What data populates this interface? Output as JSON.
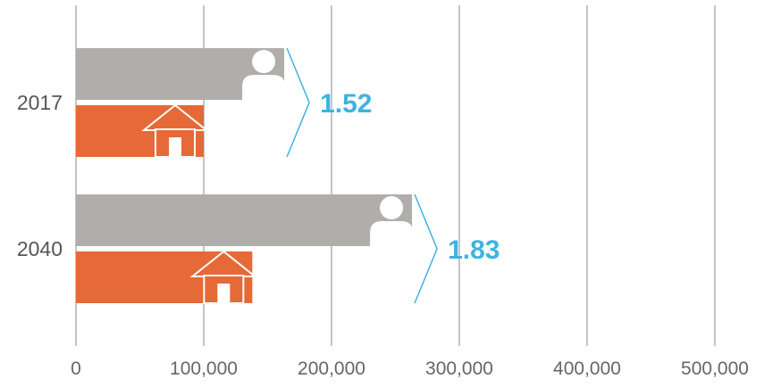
{
  "chart_data": {
    "type": "bar",
    "categories": [
      "2017",
      "2040"
    ],
    "series": [
      {
        "values": [
          163000,
          263000
        ],
        "icon": "person-icon"
      },
      {
        "values": [
          100000,
          138000
        ],
        "icon": "house-icon"
      }
    ],
    "annotations": [
      "1.52",
      "1.83"
    ],
    "x_ticks": [
      "0",
      "100,000",
      "200,000",
      "300,000",
      "400,000",
      "500,000"
    ],
    "xlim": [
      0,
      500000
    ],
    "grid": true,
    "orientation": "horizontal"
  },
  "colors": {
    "population_bar": "#b0aeaa",
    "housing_bar": "#e56a37",
    "ratio_text": "#3db3e1",
    "gridline": "#888888",
    "icon_fill": "#ffffff"
  }
}
